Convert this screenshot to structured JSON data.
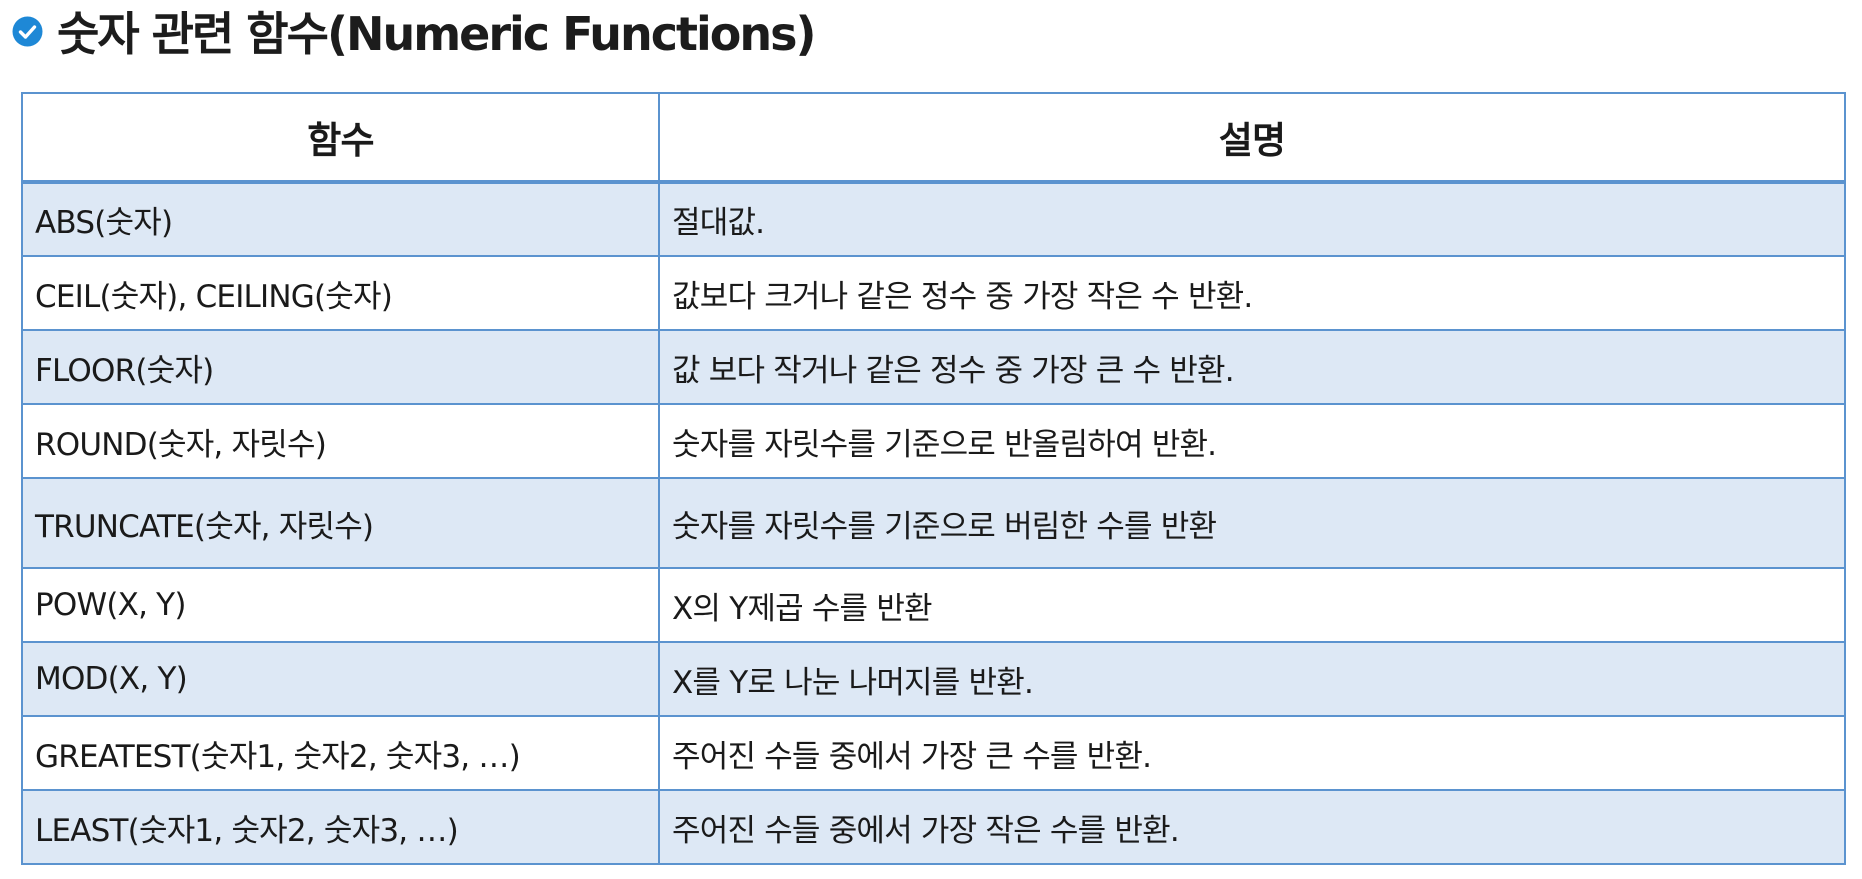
{
  "title": {
    "icon": "check-circle-icon",
    "text": "숫자 관련 함수(Numeric Functions)"
  },
  "colors": {
    "accent": "#1e88d6",
    "border": "#5b93cf",
    "row_shade": "#dde8f5"
  },
  "table": {
    "headers": [
      "함수",
      "설명"
    ],
    "rows": [
      {
        "func": "ABS(숫자)",
        "desc": "절대값."
      },
      {
        "func": "CEIL(숫자), CEILING(숫자)",
        "desc": "값보다 크거나 같은 정수 중 가장 작은 수 반환."
      },
      {
        "func": "FLOOR(숫자)",
        "desc": "값 보다 작거나 같은 정수 중 가장 큰 수 반환."
      },
      {
        "func": "ROUND(숫자, 자릿수)",
        "desc": "숫자를 자릿수를 기준으로 반올림하여 반환."
      },
      {
        "func": "TRUNCATE(숫자, 자릿수)",
        "desc": "숫자를 자릿수를 기준으로 버림한 수를 반환"
      },
      {
        "func": "POW(X, Y)",
        "desc": "X의 Y제곱 수를 반환"
      },
      {
        "func": "MOD(X, Y)",
        "desc": "X를 Y로 나눈 나머지를 반환."
      },
      {
        "func": "GREATEST(숫자1, 숫자2, 숫자3, …)",
        "desc": "주어진 수들 중에서 가장 큰 수를 반환."
      },
      {
        "func": "LEAST(숫자1, 숫자2, 숫자3, …)",
        "desc": "주어진 수들 중에서 가장 작은 수를 반환."
      }
    ]
  }
}
